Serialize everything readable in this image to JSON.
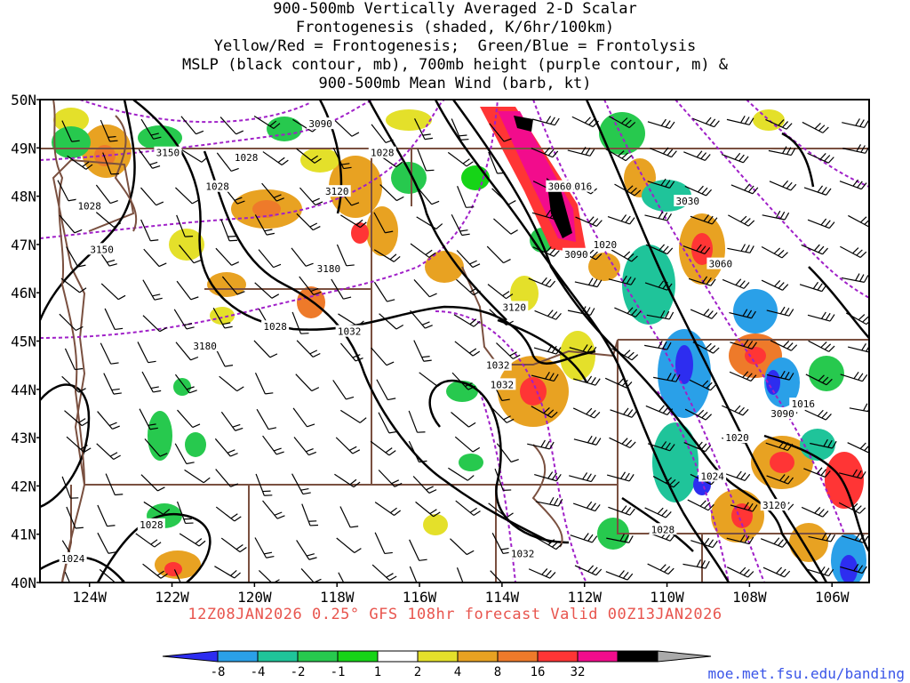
{
  "title_lines": [
    "900-500mb Vertically Averaged 2-D Scalar",
    "Frontogenesis (shaded, K/6hr/100km)",
    "Yellow/Red = Frontogenesis;  Green/Blue = Frontolysis",
    "MSLP (black contour, mb), 700mb height (purple contour, m) &",
    "900-500mb Mean Wind (barb, kt)"
  ],
  "run_info": "12Z08JAN2026 0.25° GFS 108hr forecast Valid 00Z13JAN2026",
  "credit": "moe.met.fsu.edu/banding",
  "map": {
    "lat_labels": [
      "50N",
      "49N",
      "48N",
      "47N",
      "46N",
      "45N",
      "44N",
      "43N",
      "42N",
      "41N",
      "40N"
    ],
    "lon_labels": [
      "124W",
      "122W",
      "120W",
      "118W",
      "116W",
      "114W",
      "112W",
      "110W",
      "108W",
      "106W"
    ],
    "mslp_labels": [
      {
        "text": "1028",
        "lon": -120.2,
        "lat": 48.8
      },
      {
        "text": "1028",
        "lon": -120.9,
        "lat": 48.2
      },
      {
        "text": "1028",
        "lon": -116.9,
        "lat": 48.9
      },
      {
        "text": "1028",
        "lon": -124.0,
        "lat": 47.8
      },
      {
        "text": "1028",
        "lon": -119.5,
        "lat": 45.3
      },
      {
        "text": "1032",
        "lon": -117.7,
        "lat": 45.2
      },
      {
        "text": "1032",
        "lon": -114.1,
        "lat": 44.5
      },
      {
        "text": "1032",
        "lon": -114.0,
        "lat": 44.1
      },
      {
        "text": "1032",
        "lon": -113.5,
        "lat": 40.6
      },
      {
        "text": "1016",
        "lon": -112.1,
        "lat": 48.2
      },
      {
        "text": "1020",
        "lon": -111.5,
        "lat": 47.0
      },
      {
        "text": "1016",
        "lon": -106.7,
        "lat": 43.7
      },
      {
        "text": "1020",
        "lon": -108.3,
        "lat": 43.0
      },
      {
        "text": "1024",
        "lon": -108.9,
        "lat": 42.2
      },
      {
        "text": "1028",
        "lon": -110.1,
        "lat": 41.1
      },
      {
        "text": "1028",
        "lon": -122.5,
        "lat": 41.2
      },
      {
        "text": "1024",
        "lon": -124.4,
        "lat": 40.5
      }
    ],
    "height_labels": [
      {
        "text": "3090",
        "lon": -118.4,
        "lat": 49.5
      },
      {
        "text": "3150",
        "lon": -122.1,
        "lat": 48.9
      },
      {
        "text": "3120",
        "lon": -118.0,
        "lat": 48.1
      },
      {
        "text": "3150",
        "lon": -123.7,
        "lat": 46.9
      },
      {
        "text": "3180",
        "lon": -118.2,
        "lat": 46.5
      },
      {
        "text": "3180",
        "lon": -121.2,
        "lat": 44.9
      },
      {
        "text": "3120",
        "lon": -113.7,
        "lat": 45.7
      },
      {
        "text": "3060",
        "lon": -112.6,
        "lat": 48.2
      },
      {
        "text": "3090",
        "lon": -112.2,
        "lat": 46.8
      },
      {
        "text": "3030",
        "lon": -109.5,
        "lat": 47.9
      },
      {
        "text": "3060",
        "lon": -108.7,
        "lat": 46.6
      },
      {
        "text": "3090",
        "lon": -107.2,
        "lat": 43.5
      },
      {
        "text": "3120",
        "lon": -107.4,
        "lat": 41.6
      }
    ]
  },
  "colorbar": {
    "labels": [
      "-8",
      "-4",
      "-2",
      "-1",
      "1",
      "2",
      "4",
      "8",
      "16",
      "32"
    ],
    "colors": [
      "#2d2df0",
      "#2aa0e8",
      "#1fc49a",
      "#27c94e",
      "#16d417",
      "#ffffff",
      "#e4e02a",
      "#e8a222",
      "#ee7a2a",
      "#ff3535",
      "#f20c8c",
      "#000000",
      "#aaaaaa"
    ]
  }
}
